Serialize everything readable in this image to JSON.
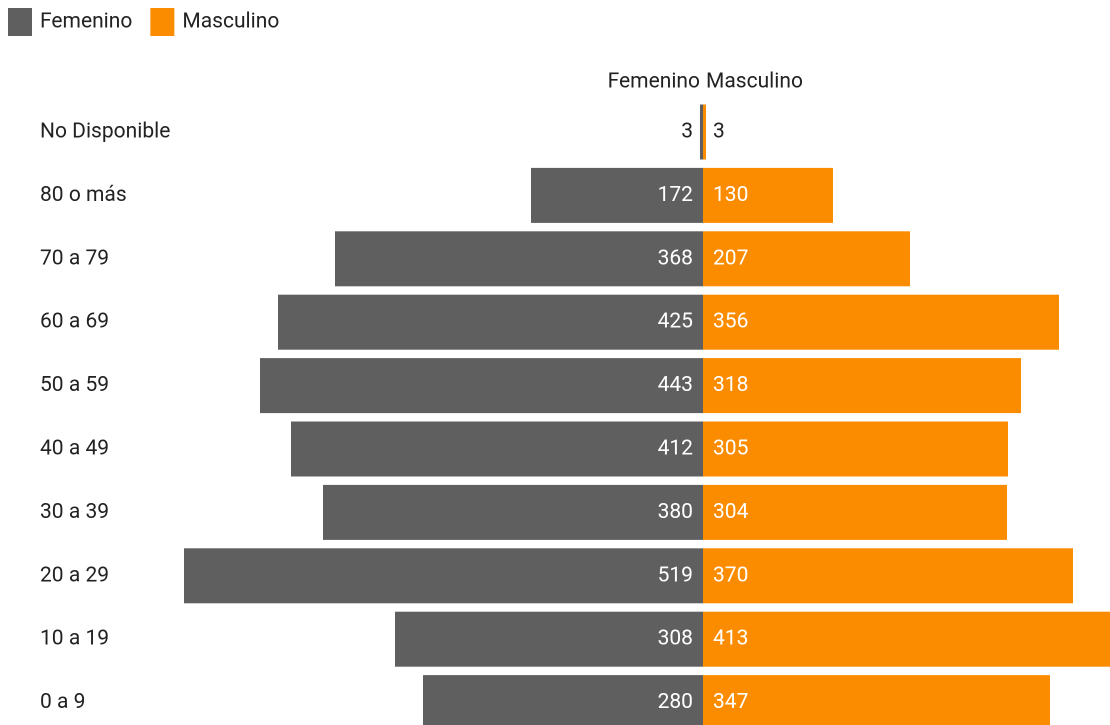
{
  "chart_data": {
    "type": "pyramid",
    "categories": [
      "No Disponible",
      "80 o más",
      "70 a 79",
      "60 a 69",
      "50 a 59",
      "40 a 49",
      "30 a 39",
      "20 a 29",
      "10 a 19",
      "0 a 9"
    ],
    "series": [
      {
        "name": "Femenino",
        "color": "#5f5f5f",
        "values": [
          3,
          172,
          368,
          425,
          443,
          412,
          380,
          519,
          308,
          280
        ]
      },
      {
        "name": "Masculino",
        "color": "#fb8c00",
        "values": [
          3,
          130,
          207,
          356,
          318,
          305,
          304,
          370,
          413,
          347
        ]
      }
    ],
    "legend": "top-left"
  }
}
